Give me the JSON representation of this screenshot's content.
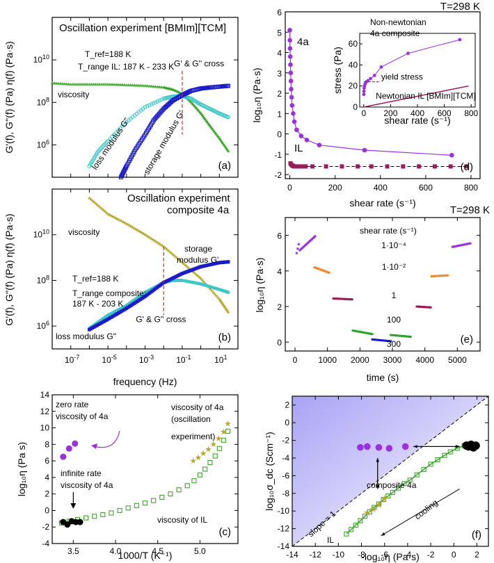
{
  "figure": {
    "temp_label_top": "T=298 K",
    "temp_label_mid": "T=298 K"
  },
  "chart_data": [
    {
      "id": "a",
      "type": "line",
      "panel_label": "(a)",
      "title": "Oscillation experiment [BMIm][TCM]",
      "ylabel": "G'(f), G''(f) (Pa) η(f) (Pa·s)",
      "xscale": "log",
      "yscale": "log",
      "xlim": [
        1e-08,
        100
      ],
      "ylim": [
        30000.0,
        1000000000000.0
      ],
      "yticks": [
        {
          "v": 1000000.0,
          "label": "10^6"
        },
        {
          "v": 100000000.0,
          "label": "10^8"
        },
        {
          "v": 10000000000.0,
          "label": "10^10"
        }
      ],
      "annotations": {
        "tref": "T_ref=188 K",
        "trange": "T_range IL: 187 K - 233 K",
        "cross": "G' & G'' cross",
        "cross_x": 0.1,
        "viscosity": "viscosity",
        "loss": "loss modulus G\"",
        "storage": "storage modulus G'"
      },
      "series": [
        {
          "name": "viscosity",
          "color": "#3ca32c",
          "marker": "star",
          "x": [
            1e-08,
            1e-07,
            1e-06,
            1e-05,
            0.0001,
            0.001,
            0.01,
            0.03,
            0.1,
            0.3,
            1,
            3,
            10,
            30
          ],
          "y": [
            800000000.0,
            700000000.0,
            700000000.0,
            700000000.0,
            650000000.0,
            600000000.0,
            500000000.0,
            400000000.0,
            250000000.0,
            100000000.0,
            30000000.0,
            8000000.0,
            2000000.0,
            500000.0
          ]
        },
        {
          "name": "loss modulus G\"",
          "color": "#3cc7c9",
          "marker": "circle",
          "x": [
            1e-06,
            3e-06,
            1e-05,
            0.0001,
            0.001,
            0.01,
            0.03,
            0.1,
            0.3,
            1,
            3,
            10,
            30
          ],
          "y": [
            100000.0,
            500000.0,
            1500000.0,
            12000000.0,
            60000000.0,
            150000000.0,
            190000000.0,
            200000000.0,
            150000000.0,
            80000000.0,
            50000000.0,
            30000000.0,
            20000000.0
          ]
        },
        {
          "name": "storage modulus G'",
          "color": "#1b1bc8",
          "marker": "square",
          "x": [
            5e-05,
            0.0001,
            0.0003,
            0.001,
            0.003,
            0.01,
            0.03,
            0.1,
            0.3,
            1,
            3,
            10,
            30
          ],
          "y": [
            30000.0,
            100000.0,
            600000.0,
            3000000.0,
            15000000.0,
            50000000.0,
            120000000.0,
            220000000.0,
            350000000.0,
            450000000.0,
            500000000.0,
            550000000.0,
            600000000.0
          ]
        }
      ]
    },
    {
      "id": "b",
      "type": "line",
      "panel_label": "(b)",
      "title": "Oscillation experiment",
      "subtitle": "composite 4a",
      "xlabel": "frequency (Hz)",
      "ylabel": "G'(f), G''(f) (Pa) η(f) (Pa·s)",
      "xscale": "log",
      "yscale": "log",
      "xlim": [
        1e-08,
        100
      ],
      "ylim": [
        100000.0,
        1000000000000.0
      ],
      "xticks": [
        {
          "v": 1e-07,
          "label": "10^-7"
        },
        {
          "v": 1e-05,
          "label": "10^-5"
        },
        {
          "v": 0.001,
          "label": "10^-3"
        },
        {
          "v": 0.1,
          "label": "10^-1"
        },
        {
          "v": 10,
          "label": "10^1"
        }
      ],
      "yticks": [
        {
          "v": 1000000.0,
          "label": "10^6"
        },
        {
          "v": 100000000.0,
          "label": "10^8"
        },
        {
          "v": 10000000000.0,
          "label": "10^10"
        }
      ],
      "annotations": {
        "tref": "T_ref=188 K",
        "trange1": "T_range composite:",
        "trange2": "187 K - 203 K",
        "cross": "G' & G'' cross",
        "cross_x": 0.01,
        "viscosity": "viscosity",
        "loss": "loss modulus G\"",
        "storage1": "storage",
        "storage2": "modulus G'"
      },
      "series": [
        {
          "name": "viscosity",
          "color": "#b5a72a",
          "marker": "star",
          "x": [
            1e-06,
            1e-05,
            0.0001,
            0.001,
            0.01,
            0.1,
            1,
            10,
            30
          ],
          "y": [
            400000000000.0,
            80000000000.0,
            30000000000.0,
            10000000000.0,
            3000000000.0,
            600000000.0,
            120000000.0,
            15000000.0,
            4000000.0
          ]
        },
        {
          "name": "loss modulus G\"",
          "color": "#3cc7c9",
          "marker": "circle",
          "x": [
            1e-06,
            1e-05,
            0.0001,
            0.001,
            0.01,
            0.03,
            0.1,
            1,
            10,
            30
          ],
          "y": [
            800000.0,
            3000000.0,
            8000000.0,
            30000000.0,
            80000000.0,
            100000000.0,
            100000000.0,
            70000000.0,
            40000000.0,
            30000000.0
          ]
        },
        {
          "name": "storage modulus G'",
          "color": "#1b1bc8",
          "marker": "square",
          "x": [
            1e-06,
            1e-05,
            0.0001,
            0.001,
            0.01,
            0.1,
            1,
            10,
            30
          ],
          "y": [
            700000.0,
            2000000.0,
            6000000.0,
            20000000.0,
            80000000.0,
            200000000.0,
            400000000.0,
            600000000.0,
            650000000.0
          ]
        }
      ]
    },
    {
      "id": "c",
      "type": "scatter",
      "panel_label": "(c)",
      "xlabel": "1000/T (K⁻¹)",
      "ylabel": "log₁₀η (Pa s)",
      "xlim": [
        3.25,
        5.45
      ],
      "ylim": [
        -4,
        14
      ],
      "xticks": [
        3.5,
        4.0,
        4.5,
        5.0
      ],
      "yticks": [
        -4,
        -2,
        0,
        2,
        4,
        6,
        8,
        10,
        12,
        14
      ],
      "annotations": {
        "zero1": "zero rate",
        "zero2": "viscosity of 4a",
        "inf1": "infinite rate",
        "inf2": "viscosity of 4a",
        "visc4a": "viscosity of 4a",
        "osc1": "(oscillation",
        "osc2": "experiment)",
        "viscIL": "viscosity of IL"
      },
      "series": [
        {
          "name": "viscosity of IL",
          "color": "#3ca32c",
          "marker": "square-open",
          "x": [
            3.36,
            3.45,
            3.55,
            3.65,
            3.75,
            3.85,
            3.95,
            4.05,
            4.15,
            4.25,
            4.35,
            4.45,
            4.55,
            4.65,
            4.75,
            4.85,
            4.93,
            5.0,
            5.06,
            5.12,
            5.18,
            5.23,
            5.28,
            5.33
          ],
          "y": [
            -1.5,
            -1.3,
            -1.1,
            -0.9,
            -0.7,
            -0.5,
            -0.3,
            0.0,
            0.3,
            0.6,
            0.9,
            1.2,
            1.6,
            2.0,
            2.5,
            3.0,
            3.6,
            4.3,
            5.0,
            5.8,
            6.6,
            7.5,
            8.5,
            9.6
          ]
        },
        {
          "name": "viscosity of 4a (oscillation)",
          "color": "#b5a72a",
          "marker": "star",
          "x": [
            4.92,
            4.98,
            5.04,
            5.1,
            5.16,
            5.22,
            5.28,
            5.33
          ],
          "y": [
            6.0,
            6.4,
            6.9,
            7.4,
            8.0,
            8.7,
            9.5,
            10.5
          ]
        },
        {
          "name": "zero rate viscosity of 4a",
          "color": "#9b30e0",
          "marker": "circle",
          "x": [
            3.38,
            3.45,
            3.52
          ],
          "y": [
            6.5,
            7.5,
            8.1
          ]
        },
        {
          "name": "infinite rate viscosity of 4a",
          "color": "#000000",
          "marker": "circle",
          "x": [
            3.38,
            3.43,
            3.48,
            3.53,
            3.58
          ],
          "y": [
            -1.4,
            -1.7,
            -1.3,
            -1.4,
            -1.4
          ]
        }
      ]
    },
    {
      "id": "d",
      "type": "scatter",
      "panel_label": "(d)",
      "xlabel": "shear rate (s⁻¹)",
      "ylabel": "log₁₀η (Pa·s)",
      "xlim": [
        -20,
        840
      ],
      "ylim": [
        -2.2,
        6
      ],
      "xticks": [
        0,
        200,
        400,
        600,
        800
      ],
      "yticks": [
        -2,
        -1,
        0,
        1,
        2,
        3,
        4,
        5,
        6
      ],
      "labels": {
        "s4a": "4a",
        "IL": "IL"
      },
      "series": [
        {
          "name": "4a",
          "color": "#9b30e0",
          "marker": "circle",
          "x": [
            0.1,
            0.3,
            1,
            2,
            3,
            4,
            5,
            6,
            8,
            10,
            15,
            20,
            30,
            50,
            75,
            130,
            330,
            715
          ],
          "y": [
            5.1,
            4.6,
            4.2,
            3.8,
            3.4,
            3.0,
            2.6,
            2.2,
            1.8,
            1.4,
            1.0,
            0.6,
            0.2,
            -0.1,
            -0.3,
            -0.55,
            -0.8,
            -1.05
          ]
        },
        {
          "name": "IL",
          "color": "#9b1c5a",
          "marker": "square",
          "x": [
            3,
            6,
            10,
            15,
            20,
            25,
            30,
            40,
            50,
            60,
            70,
            100,
            160,
            230,
            300,
            360,
            430,
            500,
            570,
            640,
            710,
            780
          ],
          "y": [
            -1.45,
            -1.5,
            -1.55,
            -1.58,
            -1.6,
            -1.6,
            -1.6,
            -1.6,
            -1.6,
            -1.6,
            -1.6,
            -1.6,
            -1.6,
            -1.6,
            -1.6,
            -1.6,
            -1.6,
            -1.6,
            -1.6,
            -1.6,
            -1.6,
            -1.6
          ]
        }
      ],
      "inset": {
        "xlabel": "shear rate (s⁻¹)",
        "ylabel": "stress (Pa)",
        "xlim": [
          -30,
          830
        ],
        "ylim": [
          0,
          70
        ],
        "xticks": [
          0,
          200,
          400,
          600,
          800
        ],
        "yticks": [
          0,
          20,
          40,
          60
        ],
        "labels": {
          "nn1": "Non-newtonian",
          "nn2": "4a composite",
          "yield": "yield stress",
          "newt": "Newtonian IL [BMIm][TCM]"
        },
        "series": [
          {
            "name": "4a composite",
            "color": "#9b30e0",
            "x": [
              0.1,
              1,
              3,
              6,
              10,
              20,
              30,
              50,
              80,
              130,
              330,
              715
            ],
            "y": [
              12,
              15,
              18,
              20,
              22,
              24,
              25,
              27,
              30,
              38,
              51,
              64
            ]
          },
          {
            "name": "Newtonian IL",
            "color": "#9b1c5a",
            "x": [
              0,
              780
            ],
            "y": [
              0,
              20
            ]
          }
        ]
      }
    },
    {
      "id": "e",
      "type": "scatter",
      "panel_label": "(e)",
      "xlabel": "time (s)",
      "ylabel": "log₁₀η (Pa·s)",
      "xlim": [
        -300,
        5700
      ],
      "ylim": [
        -0.5,
        7
      ],
      "xticks": [
        0,
        1000,
        2000,
        3000,
        4000,
        5000
      ],
      "yticks": [
        0,
        2,
        4,
        6
      ],
      "legend_title": "shear rate (s⁻¹)",
      "segments": [
        {
          "label": "1·10⁻⁴",
          "color": "#9b30e0",
          "x0": 50,
          "x1": 620,
          "y0": 5.0,
          "y1": 5.95
        },
        {
          "label": "1·10⁻²",
          "color": "#f28a30",
          "x0": 600,
          "x1": 1050,
          "y0": 4.2,
          "y1": 3.9
        },
        {
          "label": "1",
          "color": "#9b1c5a",
          "x0": 1180,
          "x1": 1760,
          "y0": 2.45,
          "y1": 2.4
        },
        {
          "label": "100",
          "color": "#2aa42a",
          "x0": 1780,
          "x1": 2380,
          "y0": 0.65,
          "y1": 0.45
        },
        {
          "label": "300",
          "color": "#1b1bc8",
          "x0": 2380,
          "x1": 2950,
          "y0": 0.15,
          "y1": 0.05
        },
        {
          "label": "100",
          "color": "#2aa42a",
          "x0": 2950,
          "x1": 3560,
          "y0": 0.4,
          "y1": 0.3
        },
        {
          "label": "1",
          "color": "#9b1c5a",
          "x0": 3750,
          "x1": 4180,
          "y0": 2.0,
          "y1": 1.95
        },
        {
          "label": "1·10⁻²",
          "color": "#f28a30",
          "x0": 4200,
          "x1": 4700,
          "y0": 3.7,
          "y1": 3.75
        },
        {
          "label": "1·10⁻⁴",
          "color": "#9b30e0",
          "x0": 4850,
          "x1": 5400,
          "y0": 5.35,
          "y1": 5.55
        }
      ]
    },
    {
      "id": "f",
      "type": "scatter",
      "panel_label": "(f)",
      "xlabel": "-log₁₀η (Pa·s)",
      "ylabel": "log₁₀σ_dc (Scm⁻¹)",
      "xlim": [
        -14,
        3
      ],
      "ylim": [
        -14,
        3
      ],
      "xticks": [
        -14,
        -12,
        -10,
        -8,
        -6,
        -4,
        -2,
        0,
        2
      ],
      "yticks": [
        -14,
        -12,
        -10,
        -8,
        -6,
        -4,
        -2,
        0,
        2
      ],
      "labels": {
        "composite": "composite 4a",
        "slope": "slope = 1",
        "cooling": "cooling",
        "IL": "IL"
      },
      "series": [
        {
          "name": "IL",
          "color": "#3ca32c",
          "marker": "square-open",
          "x": [
            -9.3,
            -8.9,
            -8.5,
            -8.1,
            -7.7,
            -7.3,
            -6.9,
            -6.5,
            -6.1,
            -5.7,
            -5.3,
            -4.8,
            -4.3,
            -3.8,
            -3.2,
            -2.6,
            -2.0,
            -1.4,
            -0.8,
            -0.3,
            0.3,
            0.9,
            1.4
          ],
          "y": [
            -12.6,
            -12.1,
            -11.6,
            -11.1,
            -10.6,
            -10.1,
            -9.6,
            -9.2,
            -8.7,
            -8.3,
            -7.9,
            -7.4,
            -6.9,
            -6.5,
            -5.9,
            -5.3,
            -4.7,
            -4.2,
            -3.7,
            -3.3,
            -2.9,
            -2.6,
            -2.4
          ]
        },
        {
          "name": "4a oscillation",
          "color": "#b5a72a",
          "marker": "star",
          "x": [
            -7.5,
            -7.0,
            -6.5,
            -6.0
          ],
          "y": [
            -10.2,
            -9.8,
            -9.3,
            -8.6
          ]
        },
        {
          "name": "composite 4a",
          "color": "#9b30e0",
          "marker": "circle",
          "x": [
            -8.1,
            -7.5,
            -6.5,
            -5.6,
            -4.2
          ],
          "y": [
            -2.8,
            -2.7,
            -2.8,
            -2.9,
            -2.7
          ]
        },
        {
          "name": "infinite rate",
          "color": "#000000",
          "marker": "circle",
          "x": [
            1.1,
            1.3,
            1.5,
            1.7,
            1.9
          ],
          "y": [
            -2.6,
            -2.7,
            -2.5,
            -2.8,
            -2.6
          ]
        }
      ]
    }
  ]
}
